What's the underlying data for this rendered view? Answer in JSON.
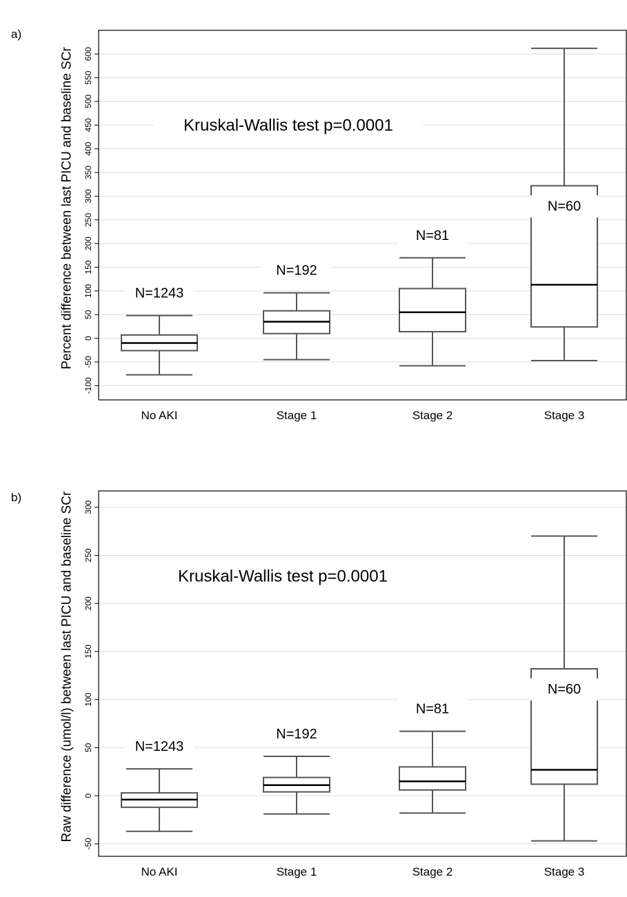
{
  "chart_data": [
    {
      "type": "box",
      "panel_label": "a)",
      "annotation": "Kruskal-Wallis test p=0.0001",
      "ylabel": "Percent difference between last PICU and baseline SCr",
      "xlabel": "",
      "categories": [
        "No AKI",
        "Stage 1",
        "Stage 2",
        "Stage 3"
      ],
      "counts": [
        "N=1243",
        "N=192",
        "N=81",
        "N=60"
      ],
      "yticks": [
        -100,
        -50,
        0,
        50,
        100,
        150,
        200,
        250,
        300,
        350,
        400,
        450,
        500,
        550,
        600
      ],
      "ylim": [
        -130,
        650
      ],
      "grid": true,
      "boxes": [
        {
          "lower_whisker": -77,
          "q1": -26,
          "median": -10,
          "q3": 7,
          "upper_whisker": 48
        },
        {
          "lower_whisker": -45,
          "q1": 10,
          "median": 35,
          "q3": 58,
          "upper_whisker": 96
        },
        {
          "lower_whisker": -58,
          "q1": 14,
          "median": 55,
          "q3": 105,
          "upper_whisker": 170
        },
        {
          "lower_whisker": -47,
          "q1": 24,
          "median": 113,
          "q3": 322,
          "upper_whisker": 612
        }
      ]
    },
    {
      "type": "box",
      "panel_label": "b)",
      "annotation": "Kruskal-Wallis test p=0.0001",
      "ylabel": "Raw difference (umol/l) between last PICU and baseline SCr",
      "xlabel": "",
      "categories": [
        "No AKI",
        "Stage 1",
        "Stage 2",
        "Stage 3"
      ],
      "counts": [
        "N=1243",
        "N=192",
        "N=81",
        "N=60"
      ],
      "yticks": [
        -50,
        0,
        50,
        100,
        150,
        200,
        250,
        300
      ],
      "ylim": [
        -63,
        317
      ],
      "grid": true,
      "boxes": [
        {
          "lower_whisker": -37,
          "q1": -12,
          "median": -4,
          "q3": 3,
          "upper_whisker": 28
        },
        {
          "lower_whisker": -19,
          "q1": 4,
          "median": 11,
          "q3": 19,
          "upper_whisker": 41
        },
        {
          "lower_whisker": -18,
          "q1": 6,
          "median": 15,
          "q3": 30,
          "upper_whisker": 67
        },
        {
          "lower_whisker": -47,
          "q1": 12,
          "median": 27,
          "q3": 132,
          "upper_whisker": 270
        }
      ]
    }
  ]
}
